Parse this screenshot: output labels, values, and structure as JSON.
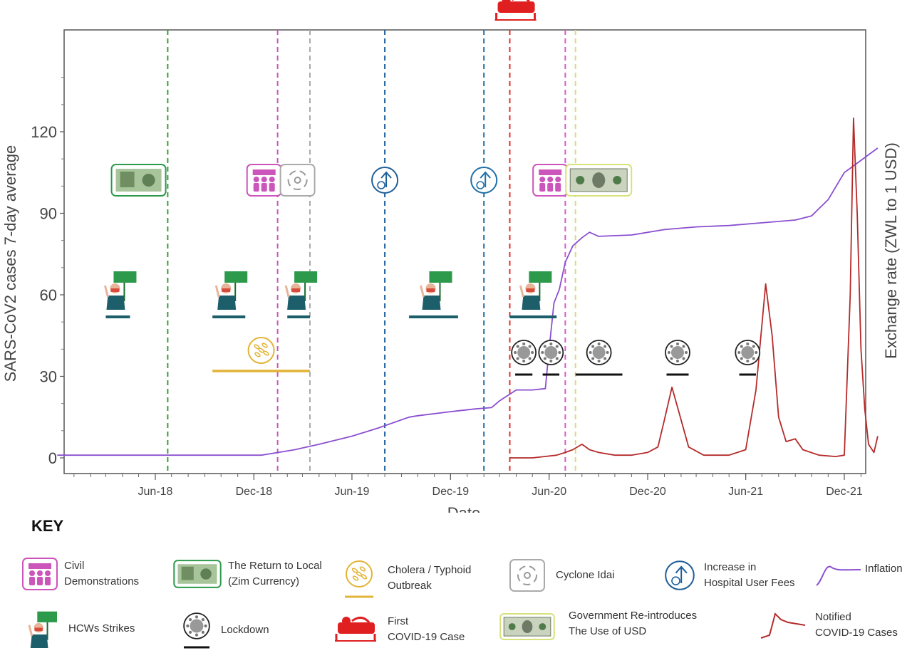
{
  "chart_data": {
    "type": "line",
    "xlabel": "Date",
    "ylabel_left": "SARS-CoV2 cases 7-day average",
    "ylabel_right": "Exchange rate (ZWL to 1 USD)",
    "x_ticks": [
      "Jun-18",
      "Dec-18",
      "Jun-19",
      "Dec-19",
      "Jun-20",
      "Dec-20",
      "Jun-21",
      "Dec-21"
    ],
    "y_ticks": [
      0,
      30,
      60,
      90,
      120
    ],
    "ylim": [
      -6,
      150
    ],
    "series": [
      {
        "name": "Inflation",
        "color": "#8a4fd0",
        "x": [
          "2017-12-01",
          "2018-06-01",
          "2018-12-15",
          "2019-01-15",
          "2019-02-15",
          "2019-04-01",
          "2019-06-01",
          "2019-07-20",
          "2019-09-15",
          "2019-10-01",
          "2019-12-01",
          "2020-01-15",
          "2020-02-15",
          "2020-03-01",
          "2020-04-01",
          "2020-04-15",
          "2020-05-01",
          "2020-05-25",
          "2020-06-01",
          "2020-06-10",
          "2020-06-20",
          "2020-07-01",
          "2020-07-15",
          "2020-08-01",
          "2020-08-15",
          "2020-09-01",
          "2020-11-01",
          "2021-01-01",
          "2021-03-01",
          "2021-05-01",
          "2021-07-01",
          "2021-09-01",
          "2021-10-01",
          "2021-11-01",
          "2021-12-01",
          "2021-12-15",
          "2022-02-01"
        ],
        "values": [
          1,
          1,
          1,
          2,
          3,
          5,
          8,
          11,
          15,
          15.5,
          17,
          18,
          18.5,
          21,
          25,
          25,
          25,
          25.5,
          40,
          57,
          62,
          72,
          78,
          81,
          83,
          81.5,
          82,
          84,
          85,
          85.5,
          86.5,
          87.5,
          89,
          95,
          105,
          107,
          114
        ]
      },
      {
        "name": "Notified COVID-19 Cases",
        "color": "#b52a2a",
        "x": [
          "2020-03-20",
          "2020-05-01",
          "2020-06-15",
          "2020-07-01",
          "2020-07-15",
          "2020-08-01",
          "2020-08-15",
          "2020-09-01",
          "2020-10-01",
          "2020-11-01",
          "2020-12-01",
          "2020-12-20",
          "2021-01-01",
          "2021-01-15",
          "2021-02-01",
          "2021-02-15",
          "2021-03-15",
          "2021-05-01",
          "2021-06-01",
          "2021-06-20",
          "2021-07-08",
          "2021-07-20",
          "2021-08-01",
          "2021-08-15",
          "2021-09-01",
          "2021-09-15",
          "2021-10-15",
          "2021-11-15",
          "2021-12-01",
          "2021-12-12",
          "2021-12-18",
          "2021-12-25",
          "2022-01-01",
          "2022-01-08",
          "2022-01-15",
          "2022-01-25",
          "2022-02-01"
        ],
        "values": [
          0,
          0,
          1,
          2,
          3,
          5,
          3,
          2,
          1,
          1,
          2,
          4,
          14,
          26,
          14,
          4,
          1,
          1,
          3,
          25,
          64,
          45,
          15,
          6,
          7,
          3,
          1,
          0.5,
          1,
          60,
          125,
          90,
          40,
          18,
          5,
          2,
          8
        ]
      }
    ],
    "events": [
      {
        "name": "The Return to Local (Zim Currency)",
        "date": "2018-06-24",
        "color": "#3a9a3a"
      },
      {
        "name": "Civil Demonstrations",
        "date": "2019-01-14",
        "color": "#cc55bb"
      },
      {
        "name": "Cyclone Idai",
        "date": "2019-03-15",
        "color": "#aaaaaa"
      },
      {
        "name": "Increase in Hospital User Fees",
        "date": "2019-08-01",
        "color": "#1f5f9a"
      },
      {
        "name": "Increase in Hospital User Fees",
        "date": "2020-02-01",
        "color": "#1f6fa8"
      },
      {
        "name": "First COVID-19 Case",
        "date": "2020-03-20",
        "color": "#e03030"
      },
      {
        "name": "Civil Demonstrations",
        "date": "2020-07-01",
        "color": "#d65bc8"
      },
      {
        "name": "Government Re-introduces The Use of USD",
        "date": "2020-07-20",
        "color": "#cfe07a"
      }
    ],
    "hcw_strikes": [
      {
        "start": "2018-03-01",
        "end": "2018-04-15"
      },
      {
        "start": "2018-09-15",
        "end": "2018-11-15"
      },
      {
        "start": "2019-02-01",
        "end": "2019-03-15"
      },
      {
        "start": "2019-09-15",
        "end": "2019-12-15"
      },
      {
        "start": "2020-03-20",
        "end": "2020-06-15"
      }
    ],
    "cholera_typhoid": {
      "start": "2018-09-15",
      "end": "2019-03-15"
    },
    "lockdowns": [
      {
        "start": "2020-03-30",
        "end": "2020-05-01"
      },
      {
        "start": "2020-05-20",
        "end": "2020-06-20"
      },
      {
        "start": "2020-07-20",
        "end": "2020-10-15"
      },
      {
        "start": "2021-01-05",
        "end": "2021-02-15"
      },
      {
        "start": "2021-05-20",
        "end": "2021-06-20"
      }
    ]
  },
  "key": {
    "title": "KEY",
    "items": [
      {
        "label": "Civil\nDemonstrations",
        "icon": "civil-demonstrations-icon"
      },
      {
        "label": "The Return to Local\n(Zim Currency)",
        "icon": "zim-currency-icon"
      },
      {
        "label": "Cholera / Typhoid\nOutbreak",
        "icon": "cholera-typhoid-icon"
      },
      {
        "label": "Cyclone Idai",
        "icon": "cyclone-icon"
      },
      {
        "label": "Increase in\nHospital User Fees",
        "icon": "hospital-fees-icon"
      },
      {
        "label": "Inflation",
        "icon": "inflation-line-icon"
      },
      {
        "label": "HCWs Strikes",
        "icon": "hcw-strike-icon"
      },
      {
        "label": "Lockdown",
        "icon": "lockdown-icon"
      },
      {
        "label": "First\nCOVID-19 Case",
        "icon": "hospital-bed-icon"
      },
      {
        "label": "Government Re-introduces\nThe Use of USD",
        "icon": "usd-banknote-icon"
      },
      {
        "label": "Notified\nCOVID-19 Cases",
        "icon": "covid-cases-line-icon"
      }
    ]
  },
  "colors": {
    "inflation": "#8a4fd0",
    "covid_cases": "#b52a2a",
    "teal": "#1d5e6b",
    "gold": "#e2b437",
    "magenta": "#cc55bb",
    "green": "#2c9a4a"
  }
}
